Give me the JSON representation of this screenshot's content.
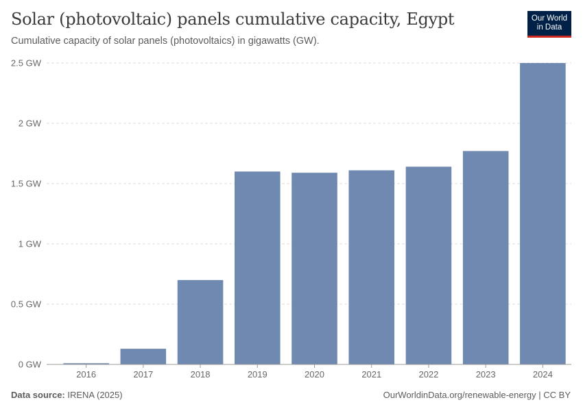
{
  "header": {
    "title": "Solar (photovoltaic) panels cumulative capacity, Egypt",
    "subtitle": "Cumulative capacity of solar panels (photovoltaics) in gigawatts (GW)."
  },
  "logo": {
    "line1": "Our World",
    "line2": "in Data"
  },
  "footer": {
    "source_label": "Data source:",
    "source_value": "IRENA (2025)",
    "right_text": "OurWorldinData.org/renewable-energy | CC BY"
  },
  "colors": {
    "bar": "#6f89b1",
    "grid": "#dddddd",
    "axis": "#999999",
    "logo_bg": "#002147",
    "logo_accent": "#ce261e"
  },
  "chart_data": {
    "type": "bar",
    "title": "Solar (photovoltaic) panels cumulative capacity, Egypt",
    "subtitle": "Cumulative capacity of solar panels (photovoltaics) in gigawatts (GW).",
    "categories": [
      "2016",
      "2017",
      "2018",
      "2019",
      "2020",
      "2021",
      "2022",
      "2023",
      "2024"
    ],
    "values": [
      0.01,
      0.13,
      0.7,
      1.6,
      1.59,
      1.61,
      1.64,
      1.77,
      2.5
    ],
    "unit": "GW",
    "ylim": [
      0,
      2.5
    ],
    "yticks": [
      0,
      0.5,
      1,
      1.5,
      2,
      2.5
    ],
    "ytick_labels": [
      "0 GW",
      "0.5 GW",
      "1 GW",
      "1.5 GW",
      "2 GW",
      "2.5 GW"
    ],
    "grid": true,
    "legend": "none"
  }
}
